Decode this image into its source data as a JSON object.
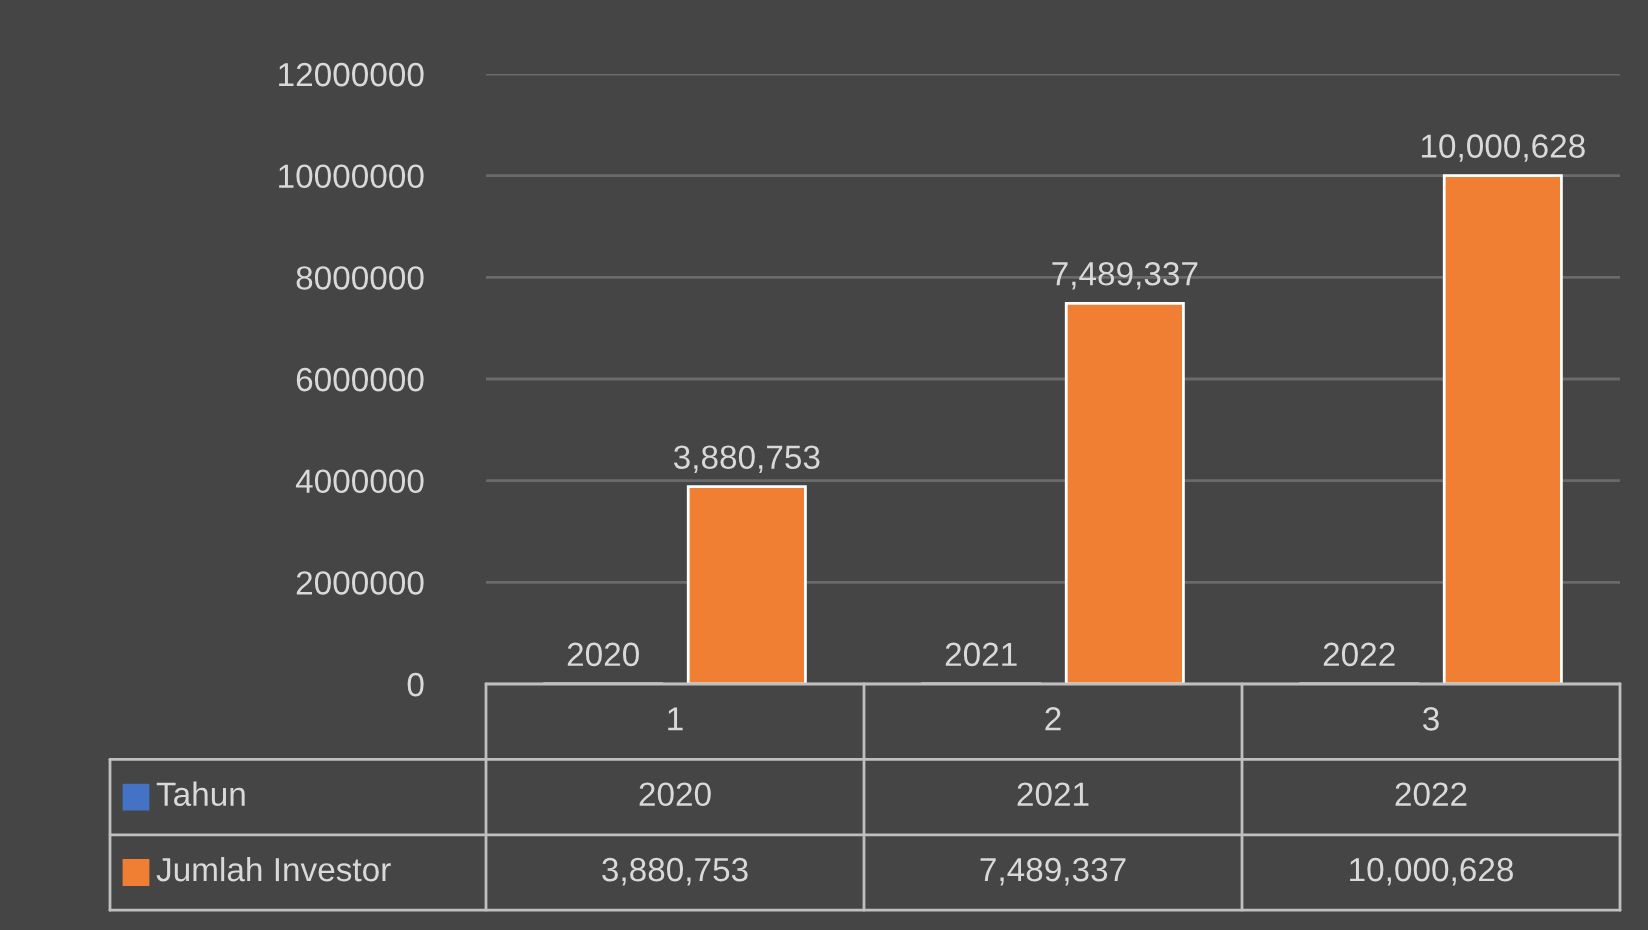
{
  "chart_data": {
    "type": "bar",
    "categories": [
      "1",
      "2",
      "3"
    ],
    "series": [
      {
        "name": "Tahun",
        "color": "#4472c4",
        "values": [
          2020,
          2021,
          2022
        ],
        "value_labels": [
          "2020",
          "2021",
          "2022"
        ]
      },
      {
        "name": "Jumlah Investor",
        "color": "#f07f33",
        "values": [
          3880753,
          7489337,
          10000628
        ],
        "value_labels": [
          "3,880,753",
          "7,489,337",
          "10,000,628"
        ]
      }
    ],
    "ylim": [
      0,
      12000000
    ],
    "yticks": [
      0,
      2000000,
      4000000,
      6000000,
      8000000,
      10000000,
      12000000
    ],
    "grid": "y",
    "legend": "bottom"
  }
}
